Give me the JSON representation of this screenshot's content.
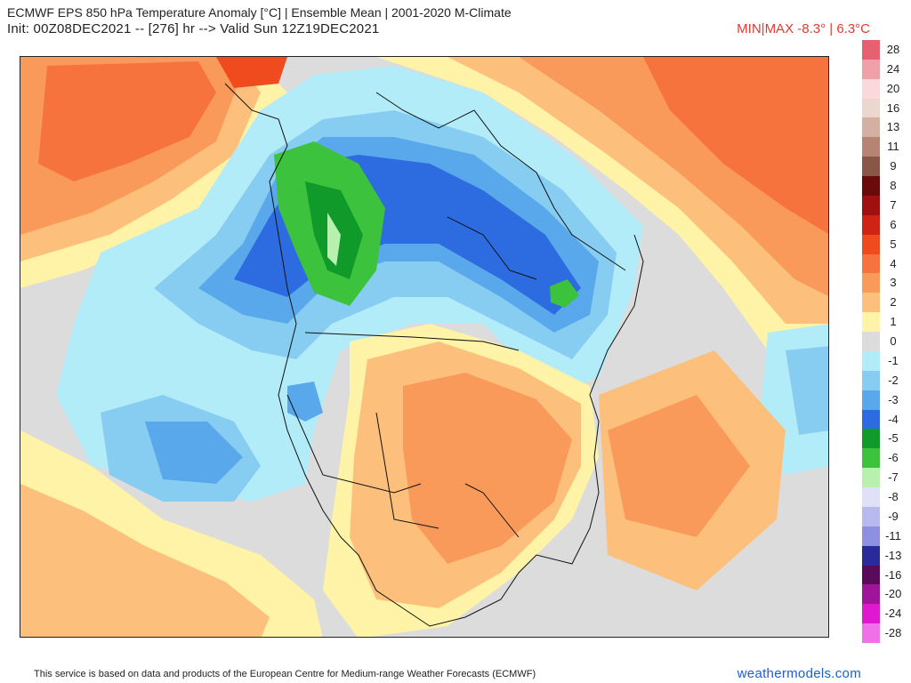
{
  "header": {
    "title": "ECMWF EPS 850 hPa Temperature Anomaly [°C] | Ensemble Mean | 2001-2020 M-Climate",
    "init": "Init: 00Z08DEC2021 -- [276] hr --> Valid Sun 12Z19DEC2021",
    "minmax": "MIN|MAX -8.3° | 6.3°C"
  },
  "legend": {
    "items": [
      {
        "label": "28",
        "color": "#e66070"
      },
      {
        "label": "24",
        "color": "#f0a0a8"
      },
      {
        "label": "20",
        "color": "#fbd8dc"
      },
      {
        "label": "16",
        "color": "#ead8cf"
      },
      {
        "label": "13",
        "color": "#d4b0a2"
      },
      {
        "label": "11",
        "color": "#b68472"
      },
      {
        "label": "9",
        "color": "#8a5646"
      },
      {
        "label": "8",
        "color": "#6a0a0a"
      },
      {
        "label": "7",
        "color": "#a01010"
      },
      {
        "label": "6",
        "color": "#cf2415"
      },
      {
        "label": "5",
        "color": "#f04a1f"
      },
      {
        "label": "4",
        "color": "#f7733d"
      },
      {
        "label": "3",
        "color": "#fa9a5a"
      },
      {
        "label": "2",
        "color": "#fcc07c"
      },
      {
        "label": "1",
        "color": "#fef3a6"
      },
      {
        "label": "0",
        "color": "#dcdcdc"
      },
      {
        "label": "-1",
        "color": "#b3ecf9"
      },
      {
        "label": "-2",
        "color": "#87cdf2"
      },
      {
        "label": "-3",
        "color": "#5aa8ec"
      },
      {
        "label": "-4",
        "color": "#2d6be0"
      },
      {
        "label": "-5",
        "color": "#0f9a2a"
      },
      {
        "label": "-6",
        "color": "#3cc23c"
      },
      {
        "label": "-7",
        "color": "#b8f0b0"
      },
      {
        "label": "-8",
        "color": "#e0e0f6"
      },
      {
        "label": "-9",
        "color": "#b9b9ee"
      },
      {
        "label": "-11",
        "color": "#8f8fe2"
      },
      {
        "label": "-13",
        "color": "#2a2a9a"
      },
      {
        "label": "-16",
        "color": "#5a0a5a"
      },
      {
        "label": "-20",
        "color": "#a0149a"
      },
      {
        "label": "-24",
        "color": "#e018d0"
      },
      {
        "label": "-28",
        "color": "#f070e8"
      }
    ]
  },
  "footer": {
    "credit": "This service is based on data and products of the European Centre for Medium-range Weather Forecasts (ECMWF)",
    "brand": "weathermodels.com"
  }
}
